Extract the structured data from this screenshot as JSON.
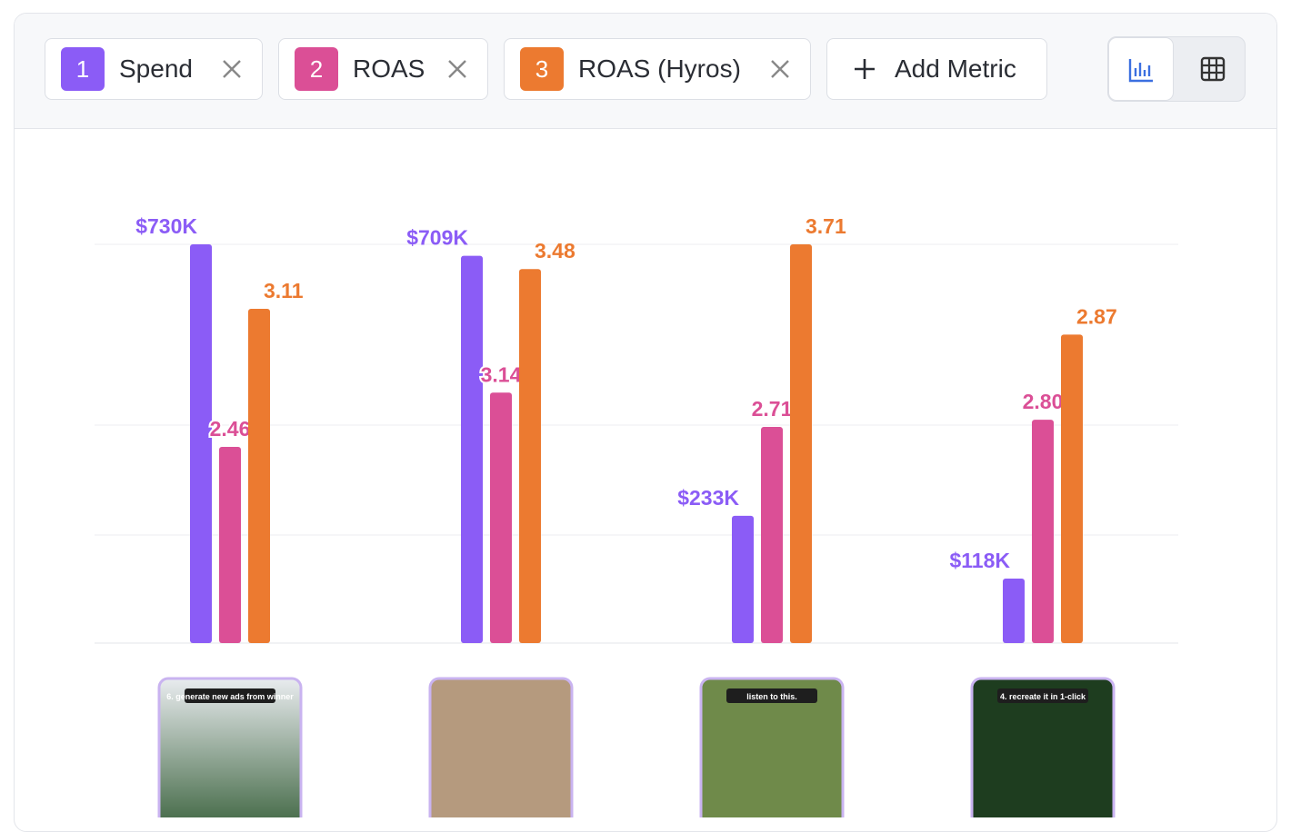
{
  "metric_numbers": [
    1,
    2,
    3
  ],
  "add_metric": "Add Metric",
  "chart_data": {
    "type": "bar",
    "series": [
      {
        "name": "Spend",
        "color": "#8b5cf6",
        "values": [
          730000,
          709000,
          233000,
          118000
        ],
        "value_labels": [
          "$730K",
          "$709K",
          "$233K",
          "$118K"
        ],
        "ylim": [
          0,
          730000
        ]
      },
      {
        "name": "ROAS",
        "color": "#db4f96",
        "values": [
          2.46,
          3.14,
          2.71,
          2.8
        ],
        "value_labels": [
          "2.46",
          "3.14",
          "2.71",
          "2.80"
        ],
        "ylim": [
          0,
          5
        ]
      },
      {
        "name": "ROAS (Hyros)",
        "color": "#ec7a30",
        "values": [
          3.11,
          3.48,
          3.71,
          2.87
        ],
        "value_labels": [
          "3.11",
          "3.48",
          "3.71",
          "2.87"
        ],
        "ylim": [
          0,
          3.71
        ]
      }
    ]
  },
  "thumbnails": [
    {
      "caption": "6. generate new ads from winner"
    },
    {
      "caption": null
    },
    {
      "caption": "listen to this."
    },
    {
      "caption": "4. recreate it in 1-click"
    }
  ]
}
